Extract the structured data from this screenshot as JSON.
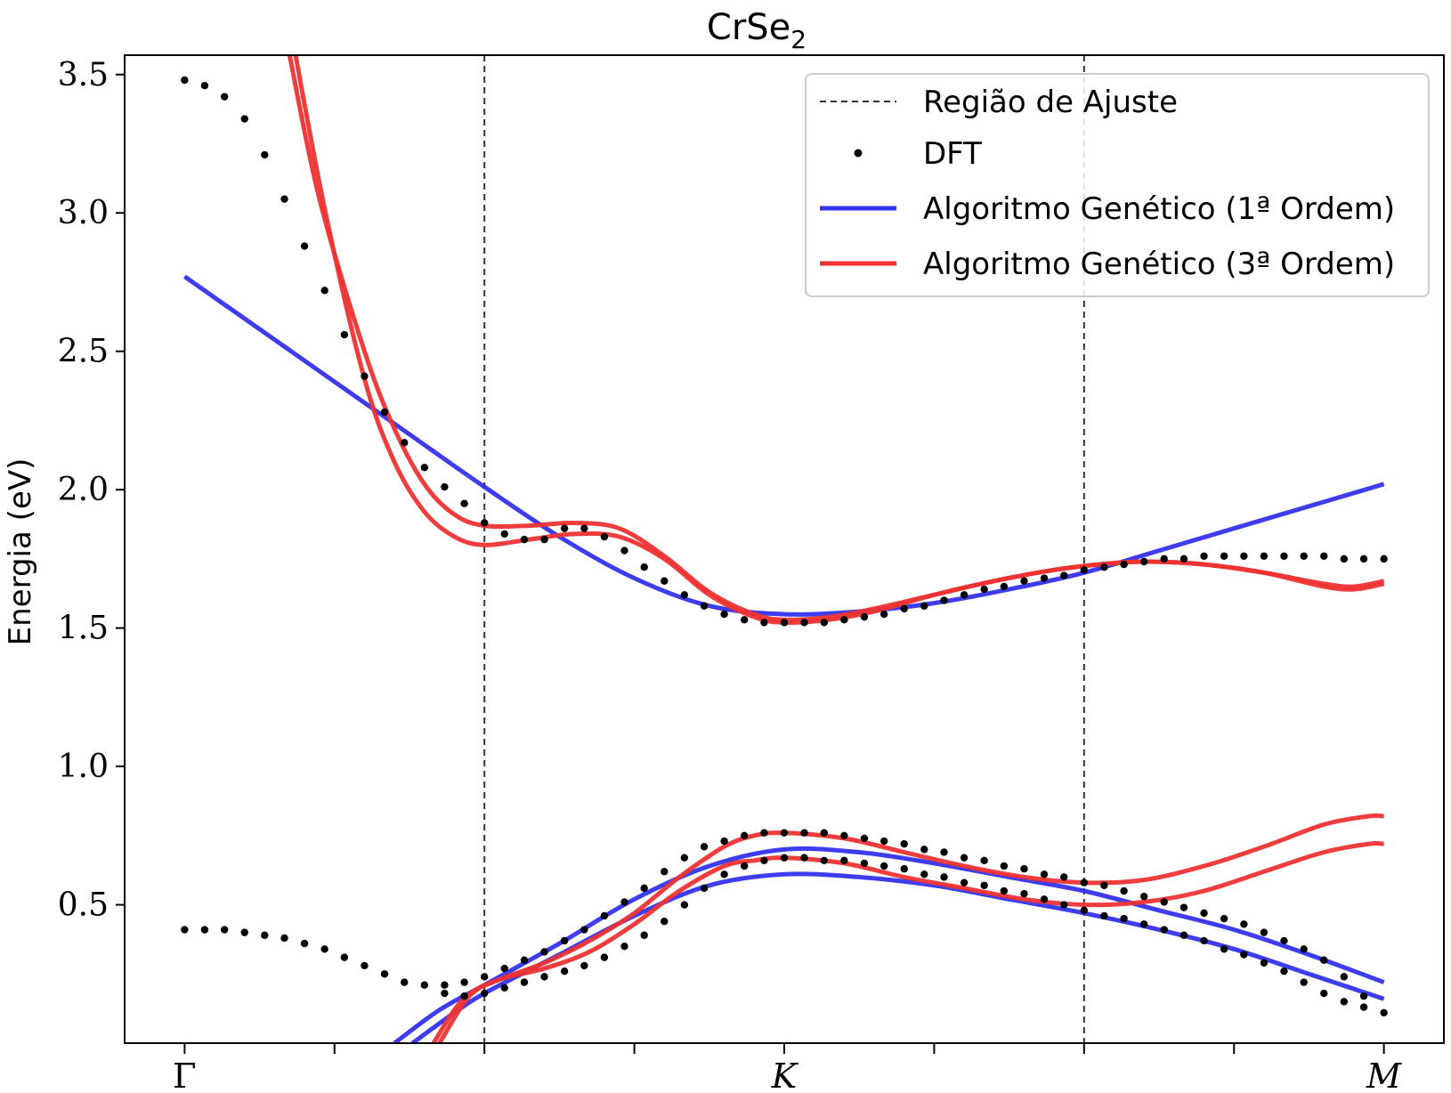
{
  "chart_data": {
    "type": "line",
    "title": "CrSe",
    "title_subscript": "2",
    "xlabel": "",
    "ylabel": "Energia (eV)",
    "ylim": [
      0.0,
      3.57
    ],
    "xlim": [
      -0.2,
      4.2
    ],
    "y_ticks": [
      0.5,
      1.0,
      1.5,
      2.0,
      2.5,
      3.0,
      3.5
    ],
    "y_tick_labels": [
      "0.5",
      "1.0",
      "1.5",
      "2.0",
      "2.5",
      "3.0",
      "3.5"
    ],
    "x_ticks": [
      0,
      0.5,
      1,
      1.5,
      2,
      2.5,
      3,
      3.5,
      4
    ],
    "x_tick_labels": [
      {
        "pos": 0,
        "text": "Γ",
        "italic": false
      },
      {
        "pos": 2,
        "text": "K",
        "italic": true
      },
      {
        "pos": 4,
        "text": "M",
        "italic": true
      }
    ],
    "fit_region": [
      1,
      3
    ],
    "grid": false,
    "legend_position": "top-right",
    "colors": {
      "dft": "#000000",
      "first_order": "#3333ee",
      "third_order": "#ee3333",
      "fit_region": "#333333"
    },
    "legend": [
      {
        "label": "Região de Ajuste",
        "style": "dashed",
        "color": "#333333"
      },
      {
        "label": "DFT",
        "style": "marker",
        "color": "#000000"
      },
      {
        "label": "Algoritmo Genético (1ª Ordem)",
        "style": "line",
        "color": "#3333ee"
      },
      {
        "label": "Algoritmo Genético (3ª Ordem)",
        "style": "line",
        "color": "#ee3333"
      }
    ],
    "series": [
      {
        "name": "DFT",
        "kind": "scatter",
        "color": "#000000",
        "x": [
          0,
          0.067,
          0.133,
          0.2,
          0.267,
          0.333,
          0.4,
          0.467,
          0.533,
          0.6,
          0.667,
          0.733,
          0.8,
          0.867,
          0.933,
          1.0,
          1.067,
          1.133,
          1.2,
          1.267,
          1.333,
          1.4,
          1.467,
          1.533,
          1.6,
          1.667,
          1.733,
          1.8,
          1.867,
          1.933,
          2.0,
          2.067,
          2.133,
          2.2,
          2.267,
          2.333,
          2.4,
          2.467,
          2.533,
          2.6,
          2.667,
          2.733,
          2.8,
          2.867,
          2.933,
          3.0,
          3.067,
          3.133,
          3.2,
          3.267,
          3.333,
          3.4,
          3.467,
          3.533,
          3.6,
          3.667,
          3.733,
          3.8,
          3.867,
          3.933,
          4.0
        ],
        "y": [
          3.48,
          3.46,
          3.42,
          3.34,
          3.21,
          3.05,
          2.88,
          2.72,
          2.56,
          2.41,
          2.28,
          2.17,
          2.08,
          2.01,
          1.95,
          1.88,
          1.84,
          1.82,
          1.82,
          1.86,
          1.86,
          1.83,
          1.78,
          1.72,
          1.67,
          1.62,
          1.58,
          1.55,
          1.53,
          1.52,
          1.52,
          1.52,
          1.52,
          1.53,
          1.54,
          1.55,
          1.57,
          1.58,
          1.6,
          1.62,
          1.64,
          1.65,
          1.67,
          1.68,
          1.69,
          1.71,
          1.72,
          1.73,
          1.74,
          1.75,
          1.75,
          1.76,
          1.76,
          1.76,
          1.76,
          1.76,
          1.76,
          1.76,
          1.75,
          1.75,
          1.75
        ]
      },
      {
        "name": "DFT",
        "kind": "scatter",
        "color": "#000000",
        "x": [
          0,
          0.067,
          0.133,
          0.2,
          0.267,
          0.333,
          0.4,
          0.467,
          0.533,
          0.6,
          0.667,
          0.733,
          0.8,
          0.867,
          0.933,
          1.0,
          1.067,
          1.133,
          1.2,
          1.267,
          1.333,
          1.4,
          1.467,
          1.533,
          1.6,
          1.667,
          1.733,
          1.8,
          1.867,
          1.933,
          2.0,
          2.067,
          2.133,
          2.2,
          2.267,
          2.333,
          2.4,
          2.467,
          2.533,
          2.6,
          2.667,
          2.733,
          2.8,
          2.867,
          2.933,
          3.0,
          3.067,
          3.133,
          3.2,
          3.267,
          3.333,
          3.4,
          3.467,
          3.533,
          3.6,
          3.667,
          3.733,
          3.8,
          3.867,
          3.933,
          4.0
        ],
        "y": [
          0.41,
          0.41,
          0.41,
          0.4,
          0.39,
          0.38,
          0.36,
          0.34,
          0.31,
          0.28,
          0.25,
          0.22,
          0.21,
          0.21,
          0.22,
          0.24,
          0.27,
          0.3,
          0.33,
          0.37,
          0.41,
          0.46,
          0.51,
          0.56,
          0.62,
          0.67,
          0.71,
          0.73,
          0.75,
          0.76,
          0.76,
          0.76,
          0.76,
          0.75,
          0.74,
          0.73,
          0.72,
          0.7,
          0.69,
          0.67,
          0.66,
          0.64,
          0.63,
          0.61,
          0.6,
          0.58,
          0.57,
          0.55,
          0.53,
          0.51,
          0.49,
          0.47,
          0.45,
          0.43,
          0.4,
          0.37,
          0.34,
          0.3,
          0.24,
          0.17,
          0.11
        ]
      },
      {
        "name": "DFT",
        "kind": "scatter",
        "color": "#000000",
        "x": [
          0.867,
          0.933,
          1.0,
          1.067,
          1.133,
          1.2,
          1.267,
          1.333,
          1.4,
          1.467,
          1.533,
          1.6,
          1.667,
          1.733,
          1.8,
          1.867,
          1.933,
          2.0,
          2.067,
          2.133,
          2.2,
          2.267,
          2.333,
          2.4,
          2.467,
          2.533,
          2.6,
          2.667,
          2.733,
          2.8,
          2.867,
          2.933,
          3.0,
          3.067,
          3.133,
          3.2,
          3.267,
          3.333,
          3.4,
          3.467,
          3.533,
          3.6,
          3.667,
          3.733,
          3.8,
          3.867,
          3.933
        ],
        "y": [
          0.18,
          0.17,
          0.18,
          0.2,
          0.22,
          0.24,
          0.26,
          0.28,
          0.31,
          0.35,
          0.39,
          0.44,
          0.5,
          0.56,
          0.61,
          0.64,
          0.66,
          0.67,
          0.67,
          0.66,
          0.66,
          0.65,
          0.64,
          0.63,
          0.61,
          0.6,
          0.58,
          0.57,
          0.55,
          0.54,
          0.52,
          0.5,
          0.48,
          0.46,
          0.45,
          0.43,
          0.41,
          0.39,
          0.37,
          0.34,
          0.32,
          0.29,
          0.26,
          0.22,
          0.18,
          0.15,
          0.13
        ]
      },
      {
        "name": "Algoritmo Genético (1ª Ordem)",
        "kind": "line",
        "color": "#3333ee",
        "x": [
          0,
          0.25,
          0.5,
          0.75,
          1.0,
          1.25,
          1.5,
          1.75,
          2.0,
          2.25,
          2.5,
          2.75,
          3.0,
          3.25,
          3.5,
          3.75,
          4.0
        ],
        "y": [
          2.77,
          2.58,
          2.39,
          2.2,
          2.01,
          1.83,
          1.68,
          1.58,
          1.55,
          1.56,
          1.59,
          1.64,
          1.7,
          1.78,
          1.86,
          1.94,
          2.02
        ]
      },
      {
        "name": "Algoritmo Genético (1ª Ordem)",
        "kind": "line",
        "color": "#3333ee",
        "x": [
          0.7,
          0.85,
          1.0,
          1.25,
          1.5,
          1.75,
          2.0,
          2.25,
          2.5,
          2.75,
          3.0,
          3.25,
          3.5,
          3.75,
          4.0
        ],
        "y": [
          0.0,
          0.12,
          0.21,
          0.36,
          0.52,
          0.64,
          0.7,
          0.69,
          0.65,
          0.6,
          0.55,
          0.48,
          0.41,
          0.32,
          0.22
        ]
      },
      {
        "name": "Algoritmo Genético (1ª Ordem)",
        "kind": "line",
        "color": "#3333ee",
        "x": [
          0.76,
          0.9,
          1.0,
          1.25,
          1.5,
          1.75,
          2.0,
          2.25,
          2.5,
          2.75,
          3.0,
          3.25,
          3.5,
          3.75,
          4.0
        ],
        "y": [
          0.0,
          0.11,
          0.18,
          0.32,
          0.46,
          0.57,
          0.61,
          0.6,
          0.57,
          0.52,
          0.47,
          0.41,
          0.34,
          0.25,
          0.16
        ]
      },
      {
        "name": "Algoritmo Genético (3ª Ordem)",
        "kind": "line",
        "color": "#ee3333",
        "x": [
          0.35,
          0.45,
          0.6,
          0.7,
          0.8,
          0.9,
          1.0,
          1.15,
          1.3,
          1.45,
          1.6,
          1.75,
          1.9,
          2.0,
          2.15,
          2.3,
          2.5,
          2.7,
          2.9,
          3.05,
          3.2,
          3.4,
          3.6,
          3.8,
          3.9,
          4.0
        ],
        "y": [
          3.57,
          3.05,
          2.5,
          2.22,
          2.02,
          1.91,
          1.87,
          1.87,
          1.88,
          1.86,
          1.76,
          1.63,
          1.55,
          1.53,
          1.54,
          1.57,
          1.62,
          1.67,
          1.71,
          1.73,
          1.74,
          1.73,
          1.7,
          1.66,
          1.65,
          1.67
        ]
      },
      {
        "name": "Algoritmo Genético (3ª Ordem)",
        "kind": "line",
        "color": "#ee3333",
        "x": [
          0.37,
          0.47,
          0.6,
          0.7,
          0.8,
          0.9,
          1.0,
          1.15,
          1.3,
          1.45,
          1.6,
          1.75,
          1.9,
          2.0,
          2.15,
          2.3,
          2.5,
          2.7,
          2.9,
          3.05,
          3.2,
          3.4,
          3.6,
          3.8,
          3.9,
          4.0
        ],
        "y": [
          3.57,
          3.0,
          2.4,
          2.1,
          1.92,
          1.83,
          1.8,
          1.82,
          1.84,
          1.83,
          1.75,
          1.62,
          1.54,
          1.52,
          1.53,
          1.56,
          1.62,
          1.67,
          1.71,
          1.73,
          1.74,
          1.73,
          1.7,
          1.65,
          1.64,
          1.66
        ]
      },
      {
        "name": "Algoritmo Genético (3ª Ordem)",
        "kind": "line",
        "color": "#ee3333",
        "x": [
          0.85,
          0.95,
          1.05,
          1.2,
          1.35,
          1.5,
          1.65,
          1.8,
          1.9,
          2.0,
          2.2,
          2.4,
          2.6,
          2.8,
          3.0,
          3.2,
          3.4,
          3.6,
          3.8,
          3.95,
          4.0
        ],
        "y": [
          0.0,
          0.17,
          0.23,
          0.29,
          0.37,
          0.47,
          0.6,
          0.71,
          0.75,
          0.76,
          0.74,
          0.69,
          0.64,
          0.6,
          0.58,
          0.59,
          0.64,
          0.71,
          0.79,
          0.82,
          0.82
        ]
      },
      {
        "name": "Algoritmo Genético (3ª Ordem)",
        "kind": "line",
        "color": "#ee3333",
        "x": [
          0.83,
          0.93,
          1.05,
          1.2,
          1.35,
          1.5,
          1.65,
          1.8,
          1.9,
          2.0,
          2.2,
          2.4,
          2.6,
          2.8,
          3.0,
          3.2,
          3.4,
          3.6,
          3.8,
          3.95,
          4.0
        ],
        "y": [
          0.0,
          0.16,
          0.23,
          0.27,
          0.33,
          0.43,
          0.55,
          0.64,
          0.66,
          0.67,
          0.65,
          0.6,
          0.56,
          0.52,
          0.5,
          0.51,
          0.55,
          0.62,
          0.69,
          0.72,
          0.72
        ]
      }
    ]
  }
}
